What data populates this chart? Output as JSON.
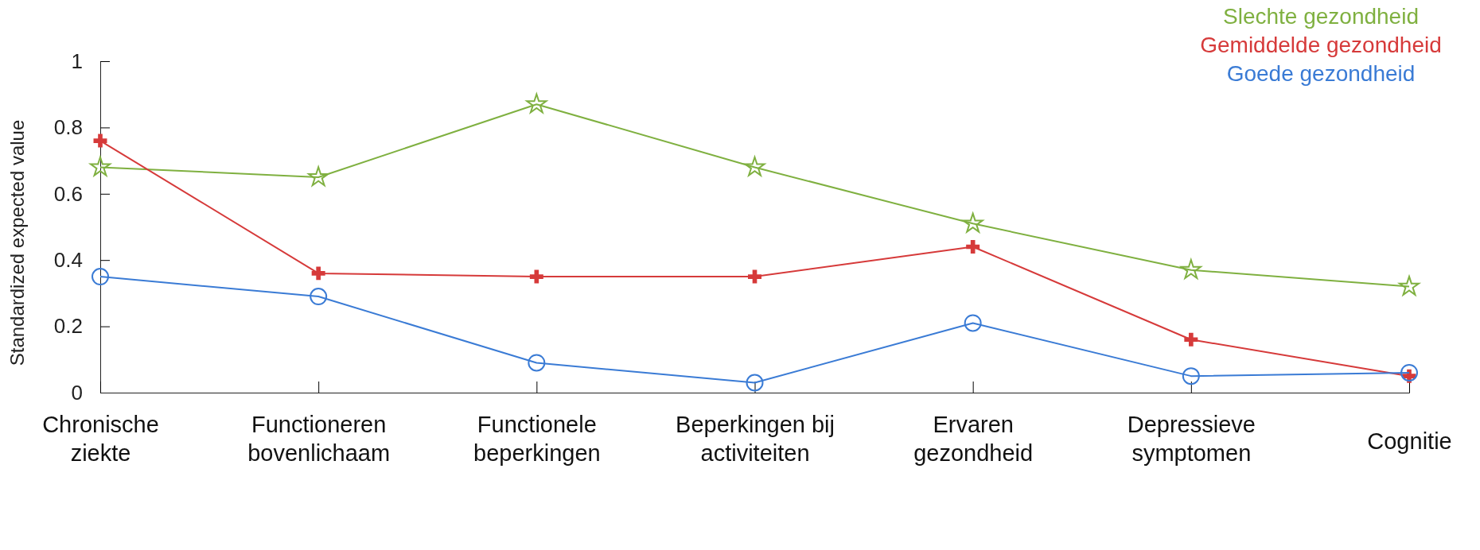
{
  "chart_data": {
    "type": "line",
    "ylabel": "Standardized expected value",
    "categories": [
      "Chronische ziekte",
      "Functioneren bovenlichaam",
      "Functionele beperkingen",
      "Beperkingen bij activiteiten",
      "Ervaren gezondheid",
      "Depressieve symptomen",
      "Cognitie"
    ],
    "series": [
      {
        "name": "Slechte gezondheid",
        "color": "#7fb040",
        "marker": "star",
        "values": [
          0.68,
          0.65,
          0.87,
          0.68,
          0.51,
          0.37,
          0.32
        ]
      },
      {
        "name": "Gemiddelde gezondheid",
        "color": "#d63a3a",
        "marker": "cross",
        "values": [
          0.76,
          0.36,
          0.35,
          0.35,
          0.44,
          0.16,
          0.05
        ]
      },
      {
        "name": "Goede gezondheid",
        "color": "#3a7bd5",
        "marker": "circle",
        "values": [
          0.35,
          0.29,
          0.09,
          0.03,
          0.21,
          0.05,
          0.06
        ]
      }
    ],
    "ylim": [
      0,
      1
    ],
    "yticks": [
      0,
      0.2,
      0.4,
      0.6,
      0.8,
      1
    ],
    "grid": false,
    "legend": "top right",
    "line_style": "solid"
  }
}
